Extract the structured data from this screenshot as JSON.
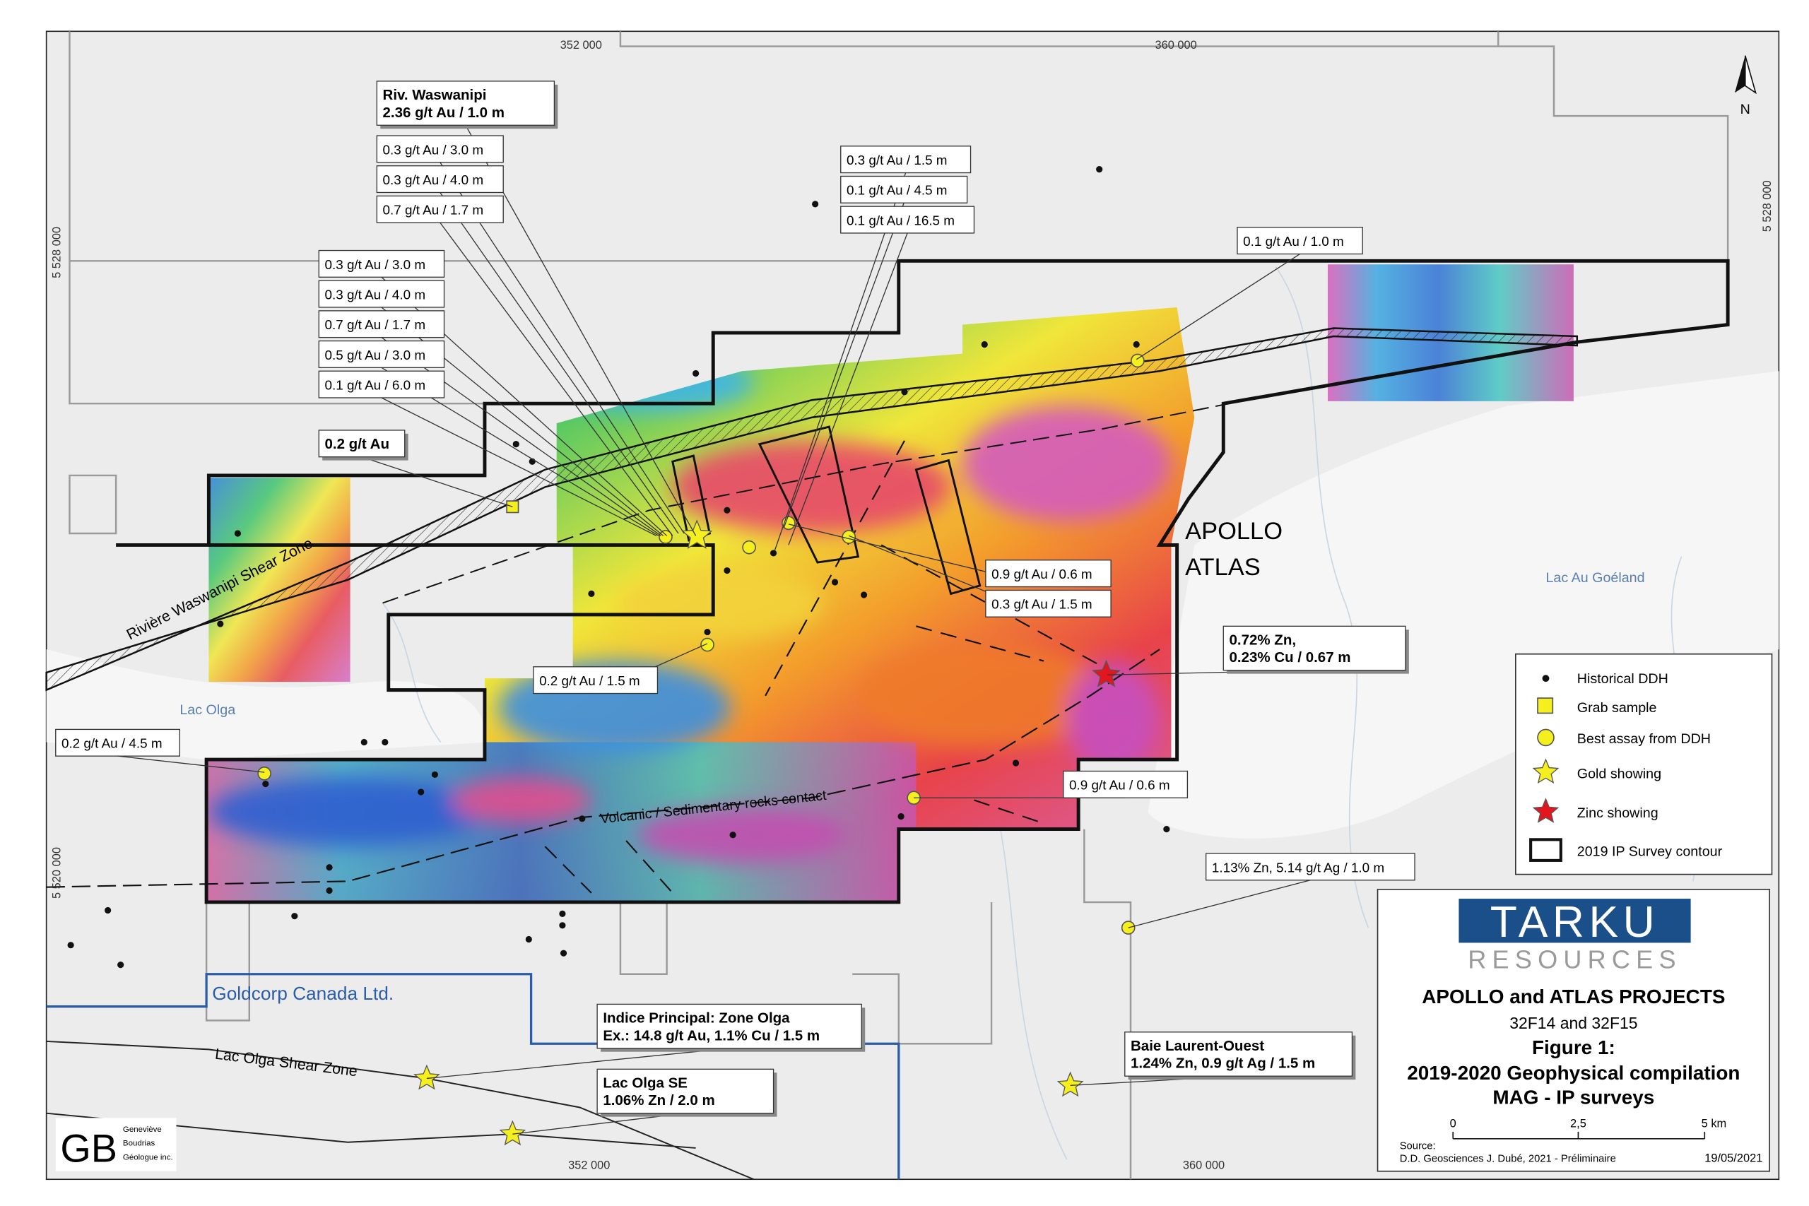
{
  "grid_labels": {
    "top": [
      "352 000",
      "360 000"
    ],
    "bottom": [
      "352 000",
      "360 000"
    ],
    "left": [
      "5 528 000",
      "5 520 000"
    ],
    "right": [
      "5 528 000"
    ]
  },
  "north": "N",
  "map_labels": {
    "apollo": "APOLLO",
    "atlas": "ATLAS",
    "lac_goeland": "Lac Au Goéland",
    "lac_olga": "Lac Olga",
    "waswanipi_shear": "Rivière Waswanipi Shear Zone",
    "contact": "Volcanic / Sedimentary rocks contact",
    "goldcorp": "Goldcorp Canada Ltd.",
    "olga_shear": "Lac Olga Shear Zone"
  },
  "callouts": [
    {
      "lines": [
        "Riv. Waswanipi",
        "2.36 g/t Au / 1.0 m"
      ]
    },
    {
      "lines": [
        "0.3 g/t Au / 3.0 m"
      ]
    },
    {
      "lines": [
        "0.3 g/t Au / 4.0 m"
      ]
    },
    {
      "lines": [
        "0.7 g/t Au / 1.7 m"
      ]
    },
    {
      "lines": [
        "0.3 g/t Au / 1.5 m"
      ]
    },
    {
      "lines": [
        "0.1 g/t Au / 4.5 m"
      ]
    },
    {
      "lines": [
        "0.1 g/t Au / 16.5 m"
      ]
    },
    {
      "lines": [
        "0.1 g/t Au / 1.0 m"
      ]
    },
    {
      "lines": [
        "0.3 g/t Au / 3.0 m"
      ]
    },
    {
      "lines": [
        "0.3 g/t Au / 4.0 m"
      ]
    },
    {
      "lines": [
        "0.7 g/t Au / 1.7 m"
      ]
    },
    {
      "lines": [
        "0.5 g/t Au / 3.0 m"
      ]
    },
    {
      "lines": [
        "0.1 g/t Au / 6.0 m"
      ]
    },
    {
      "lines": [
        "0.2 g/t Au"
      ]
    },
    {
      "lines": [
        "0.9 g/t Au / 0.6 m"
      ]
    },
    {
      "lines": [
        "0.3 g/t Au / 1.5 m"
      ]
    },
    {
      "lines": [
        "0.72% Zn,",
        "0.23% Cu / 0.67 m"
      ]
    },
    {
      "lines": [
        "0.2 g/t Au / 1.5 m"
      ]
    },
    {
      "lines": [
        "0.2 g/t Au / 4.5 m"
      ]
    },
    {
      "lines": [
        "0.9 g/t Au / 0.6 m"
      ]
    },
    {
      "lines": [
        "1.13% Zn, 5.14 g/t Ag / 1.0 m"
      ]
    },
    {
      "lines": [
        "Indice Principal: Zone Olga",
        "Ex.: 14.8 g/t Au, 1.1% Cu / 1.5 m"
      ]
    },
    {
      "lines": [
        "Lac Olga SE",
        "1.06% Zn / 2.0 m"
      ]
    },
    {
      "lines": [
        "Baie Laurent-Ouest",
        "1.24% Zn, 0.9 g/t Ag / 1.5 m"
      ]
    }
  ],
  "legend": {
    "items": [
      "Historical DDH",
      "Grab sample",
      "Best assay from DDH",
      "Gold showing",
      "Zinc showing",
      "2019 IP Survey contour"
    ]
  },
  "title_block": {
    "logo_main": "TARKU",
    "logo_sub": "RESOURCES",
    "project": "APOLLO and ATLAS PROJECTS",
    "sheets": "32F14 and 32F15",
    "figure": "Figure 1:",
    "subtitle1": "2019-2020 Geophysical compilation",
    "subtitle2": "MAG - IP surveys",
    "scale": [
      "0",
      "2,5",
      "5 km"
    ],
    "source_label": "Source:",
    "source": "D.D. Geosciences J. Dubé, 2021 - Préliminaire",
    "date": "19/05/2021"
  },
  "author_logo": {
    "initials": "GB",
    "name": [
      "Geneviève",
      "Boudrias",
      "Géologue inc."
    ]
  }
}
